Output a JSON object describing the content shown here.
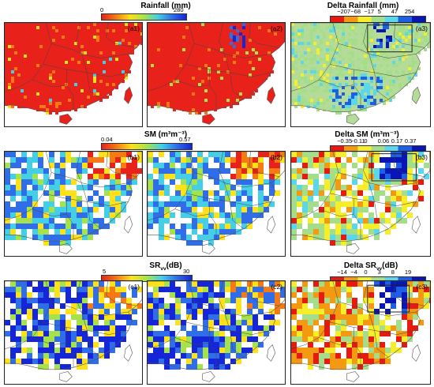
{
  "legends": {
    "rainfall": {
      "title": "Rainfall (mm)",
      "min": "0",
      "max": "280"
    },
    "delta_rainfall": {
      "title": "Delta Rainfall (mm)",
      "ticks": [
        "−207",
        "−68",
        "−17",
        "5",
        "47",
        "254"
      ]
    },
    "sm": {
      "title": "SM (m³m⁻³)",
      "min": "0.04",
      "max": "0.57"
    },
    "delta_sm": {
      "title": "Delta SM (m³m⁻³)",
      "ticks": [
        "−0.35",
        "−0.11",
        "0",
        "0.06",
        "0.17",
        "0.37"
      ]
    },
    "sr": {
      "title_main": "SR",
      "title_sub": "vv",
      "title_unit": "(dB)",
      "min": "5",
      "max": "30"
    },
    "delta_sr": {
      "title_main": "Delta SR",
      "title_sub": "vv",
      "title_unit": "(dB)",
      "ticks": [
        "−14",
        "−4",
        "0",
        "3",
        "8",
        "19"
      ]
    }
  },
  "panels": [
    {
      "label": "(a1)"
    },
    {
      "label": "(a2)"
    },
    {
      "label": "(a3)"
    },
    {
      "label": "(b1)"
    },
    {
      "label": "(b2)"
    },
    {
      "label": "(b3)"
    },
    {
      "label": "(c1)"
    },
    {
      "label": "(c2)"
    },
    {
      "label": "(c3)"
    }
  ],
  "colors": {
    "continuous_ramp": [
      "#e8211a",
      "#f57a14",
      "#ffe11a",
      "#a6e34a",
      "#44cfe6",
      "#2f6ee8",
      "#1426d8"
    ],
    "diverging_classes": [
      "#e8190f",
      "#f49a12",
      "#f7ee2a",
      "#a4de8a",
      "#5ad7ec",
      "#1e5fe8",
      "#0a16b4"
    ],
    "land_background": "#b4dc98",
    "sea": "#ffffff"
  }
}
